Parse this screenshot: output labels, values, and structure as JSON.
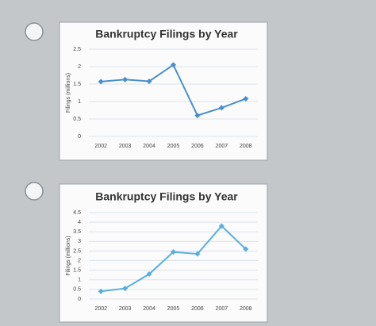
{
  "chart_data": [
    {
      "type": "line",
      "title": "Bankruptcy Filings by Year",
      "y_label": "Filings (millions)",
      "categories": [
        "2002",
        "2003",
        "2004",
        "2005",
        "2006",
        "2007",
        "2008"
      ],
      "values": [
        1.57,
        1.63,
        1.58,
        2.05,
        0.6,
        0.82,
        1.08
      ],
      "color": "#4a90c8",
      "ylim": [
        0,
        2.5
      ],
      "yticks": [
        0,
        0.5,
        1,
        1.5,
        2,
        2.5
      ],
      "grid": true
    },
    {
      "type": "line",
      "title": "Bankruptcy Filings by Year",
      "y_label": "Filings (millions)",
      "categories": [
        "2002",
        "2003",
        "2004",
        "2005",
        "2006",
        "2007",
        "2008"
      ],
      "values": [
        0.4,
        0.55,
        1.3,
        2.45,
        2.35,
        3.8,
        2.6
      ],
      "color": "#5aaee0",
      "ylim": [
        0,
        4.5
      ],
      "yticks": [
        0,
        0.5,
        1,
        1.5,
        2,
        2.5,
        3,
        3.5,
        4,
        4.5
      ],
      "grid": true
    }
  ]
}
